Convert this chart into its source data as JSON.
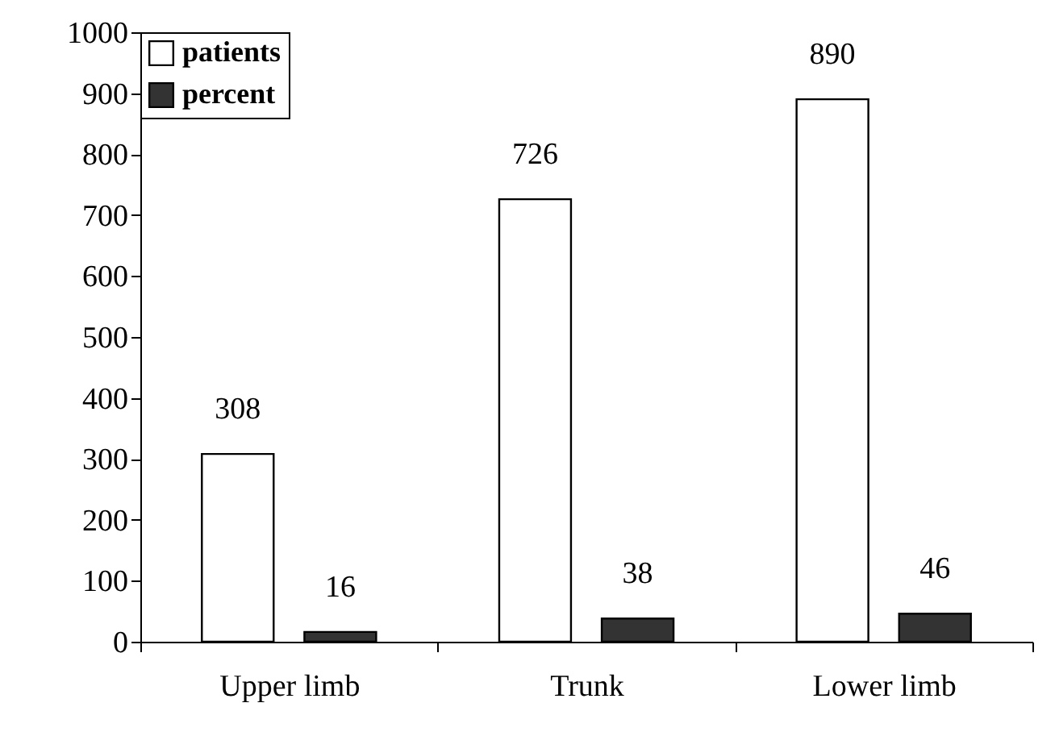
{
  "chart_data": {
    "type": "bar",
    "categories": [
      "Upper limb",
      "Trunk",
      "Lower limb"
    ],
    "series": [
      {
        "name": "patients",
        "color": "#ffffff",
        "values": [
          308,
          726,
          890
        ]
      },
      {
        "name": "percent",
        "color": "#333333",
        "values": [
          16,
          38,
          46
        ]
      }
    ],
    "ylim": [
      0,
      1000
    ],
    "yticks": [
      0,
      100,
      200,
      300,
      400,
      500,
      600,
      700,
      800,
      900,
      1000
    ],
    "data_labels": true,
    "legend": "top left",
    "grid": false
  }
}
